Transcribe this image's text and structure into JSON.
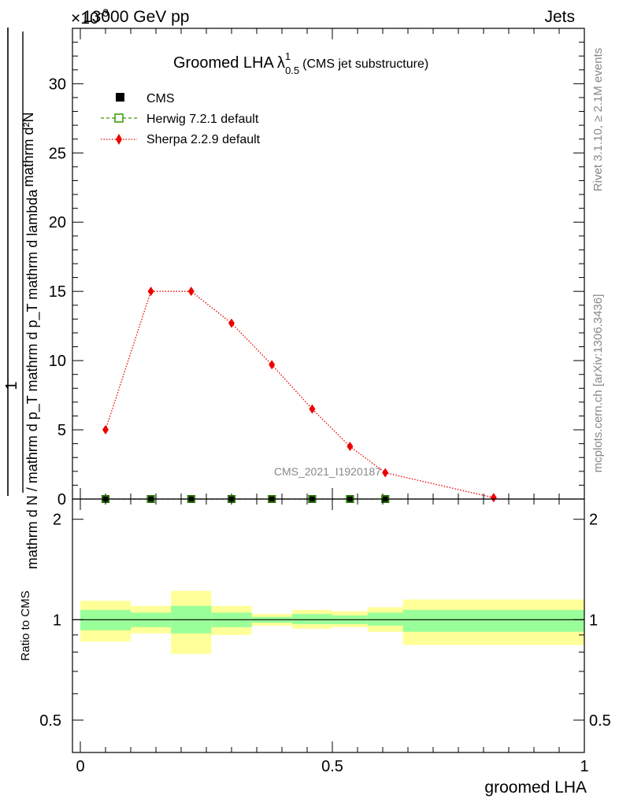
{
  "header": {
    "energy_label": "13000 GeV pp",
    "scale_prefix": "×10",
    "scale_exponent": "-3",
    "process_label": "Jets"
  },
  "side_labels": {
    "rivet": "Rivet 3.1.10, ≥ 2.1M events",
    "mcplots": "mcplots.cern.ch [arXiv:1306.3436]"
  },
  "watermark": "CMS_2021_I1920187",
  "chart_data": [
    {
      "type": "line",
      "title": {
        "main": "Groomed LHA",
        "lambda": "λ",
        "lambda_sup": "1",
        "lambda_sub": "0.5",
        "suffix": "(CMS jet substructure)"
      },
      "ylabel": {
        "numerator": "mathrm d²N",
        "fraction_one": "1",
        "denominator": "mathrm d N / mathrm d p_T mathrm d p_T mathrm d lambda"
      },
      "xlim": [
        0,
        1
      ],
      "ylim": [
        0,
        34
      ],
      "y_scale_note": "values ×10^-3",
      "yticks": [
        0,
        5,
        10,
        15,
        20,
        25,
        30
      ],
      "ytick_labels": [
        "0",
        "5",
        "10",
        "15",
        "20",
        "25",
        "30"
      ],
      "legend_position": "top-left",
      "series": [
        {
          "name": "CMS",
          "color": "#000000",
          "marker": "square-filled",
          "x": [
            0.05,
            0.14,
            0.22,
            0.3,
            0.38,
            0.46,
            0.535,
            0.605
          ],
          "y": [
            0,
            0,
            0,
            0,
            0,
            0,
            0,
            0
          ]
        },
        {
          "name": "Herwig 7.2.1 default",
          "color": "#339900",
          "marker": "square-open",
          "line": "dashed",
          "x": [
            0.05,
            0.14,
            0.22,
            0.3,
            0.38,
            0.46,
            0.535,
            0.605
          ],
          "y": [
            0,
            0,
            0,
            0,
            0,
            0,
            0,
            0
          ]
        },
        {
          "name": "Sherpa 2.2.9 default",
          "color": "#ee0000",
          "marker": "diamond",
          "line": "dotted",
          "x": [
            0.05,
            0.14,
            0.22,
            0.3,
            0.38,
            0.46,
            0.535,
            0.605,
            0.82
          ],
          "y": [
            5.0,
            15.0,
            15.0,
            12.7,
            9.7,
            6.5,
            3.8,
            1.9,
            0.1
          ]
        }
      ]
    },
    {
      "type": "area",
      "ylabel": "Ratio to CMS",
      "xlabel": "groomed LHA",
      "xlim": [
        0,
        1
      ],
      "ylim": [
        0.4,
        2.3
      ],
      "y_scale": "log",
      "yticks": [
        0.5,
        1,
        2
      ],
      "ytick_labels": [
        "0.5",
        "1",
        "2"
      ],
      "xticks": [
        0,
        0.5,
        1
      ],
      "xtick_labels": [
        "0",
        "0.5",
        "1"
      ],
      "reference_line": 1,
      "bins": [
        {
          "x0": 0.0,
          "x1": 0.1,
          "inner": [
            0.93,
            1.07
          ],
          "outer": [
            0.86,
            1.14
          ]
        },
        {
          "x0": 0.1,
          "x1": 0.18,
          "inner": [
            0.95,
            1.05
          ],
          "outer": [
            0.91,
            1.1
          ]
        },
        {
          "x0": 0.18,
          "x1": 0.26,
          "inner": [
            0.91,
            1.1
          ],
          "outer": [
            0.79,
            1.22
          ]
        },
        {
          "x0": 0.26,
          "x1": 0.34,
          "inner": [
            0.95,
            1.05
          ],
          "outer": [
            0.9,
            1.1
          ]
        },
        {
          "x0": 0.34,
          "x1": 0.42,
          "inner": [
            0.98,
            1.02
          ],
          "outer": [
            0.96,
            1.04
          ]
        },
        {
          "x0": 0.42,
          "x1": 0.5,
          "inner": [
            0.97,
            1.04
          ],
          "outer": [
            0.94,
            1.07
          ]
        },
        {
          "x0": 0.5,
          "x1": 0.57,
          "inner": [
            0.97,
            1.03
          ],
          "outer": [
            0.95,
            1.06
          ]
        },
        {
          "x0": 0.57,
          "x1": 0.64,
          "inner": [
            0.96,
            1.05
          ],
          "outer": [
            0.92,
            1.09
          ]
        },
        {
          "x0": 0.64,
          "x1": 1.0,
          "inner": [
            0.92,
            1.07
          ],
          "outer": [
            0.84,
            1.15
          ]
        }
      ],
      "colors": {
        "inner": "#99ff99",
        "outer": "#ffff99"
      }
    }
  ]
}
